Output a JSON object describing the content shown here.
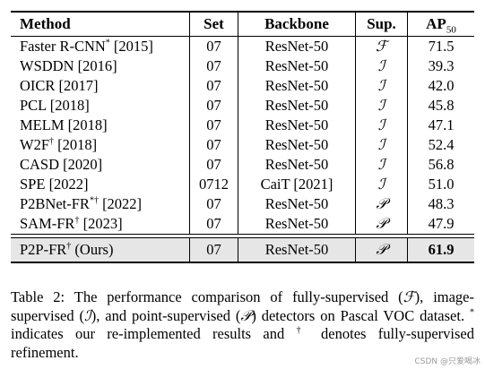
{
  "table": {
    "header": {
      "method": "Method",
      "set": "Set",
      "backbone": "Backbone",
      "sup": "Sup.",
      "ap": "AP",
      "ap_sub": "50"
    },
    "rows": [
      {
        "method": "Faster R-CNN",
        "mark": "*",
        "year": " [2015]",
        "set": "07",
        "backbone": "ResNet-50",
        "sup": "ℱ",
        "ap": "71.5"
      },
      {
        "method": "WSDDN",
        "mark": "",
        "year": " [2016]",
        "set": "07",
        "backbone": "ResNet-50",
        "sup": "ℐ",
        "ap": "39.3"
      },
      {
        "method": "OICR",
        "mark": "",
        "year": " [2017]",
        "set": "07",
        "backbone": "ResNet-50",
        "sup": "ℐ",
        "ap": "42.0"
      },
      {
        "method": "PCL",
        "mark": "",
        "year": " [2018]",
        "set": "07",
        "backbone": "ResNet-50",
        "sup": "ℐ",
        "ap": "45.8"
      },
      {
        "method": "MELM",
        "mark": "",
        "year": " [2018]",
        "set": "07",
        "backbone": "ResNet-50",
        "sup": "ℐ",
        "ap": "47.1"
      },
      {
        "method": "W2F",
        "mark": "†",
        "year": " [2018]",
        "set": "07",
        "backbone": "ResNet-50",
        "sup": "ℐ",
        "ap": "52.4"
      },
      {
        "method": "CASD",
        "mark": "",
        "year": " [2020]",
        "set": "07",
        "backbone": "ResNet-50",
        "sup": "ℐ",
        "ap": "56.8"
      },
      {
        "method": "SPE",
        "mark": "",
        "year": " [2022]",
        "set": "0712",
        "backbone": "CaiT [2021]",
        "sup": "ℐ",
        "ap": "51.0"
      },
      {
        "method": "P2BNet-FR",
        "mark": "*†",
        "year": " [2022]",
        "set": "07",
        "backbone": "ResNet-50",
        "sup": "𝒫",
        "ap": "48.3"
      },
      {
        "method": "SAM-FR",
        "mark": "†",
        "year": " [2023]",
        "set": "07",
        "backbone": "ResNet-50",
        "sup": "𝒫",
        "ap": "47.9"
      }
    ],
    "ours": {
      "method": "P2P-FR",
      "mark": "†",
      "year": " (Ours)",
      "set": "07",
      "backbone": "ResNet-50",
      "sup": "𝒫",
      "ap": "61.9"
    }
  },
  "caption": {
    "part1": "Table 2:  The performance comparison of fully-supervised (",
    "sym_f": "ℱ",
    "part2": "), image-supervised (",
    "sym_i": "ℐ",
    "part3": "), and point-supervised (",
    "sym_p": "𝒫",
    "part4": ") detectors on Pascal VOC dataset.",
    "star": "*",
    "part5": " indicates our re-implemented results and",
    "dagger": "†",
    "part6": " denotes fully-supervised refinement."
  },
  "watermark": "CSDN @只爱喝冰"
}
